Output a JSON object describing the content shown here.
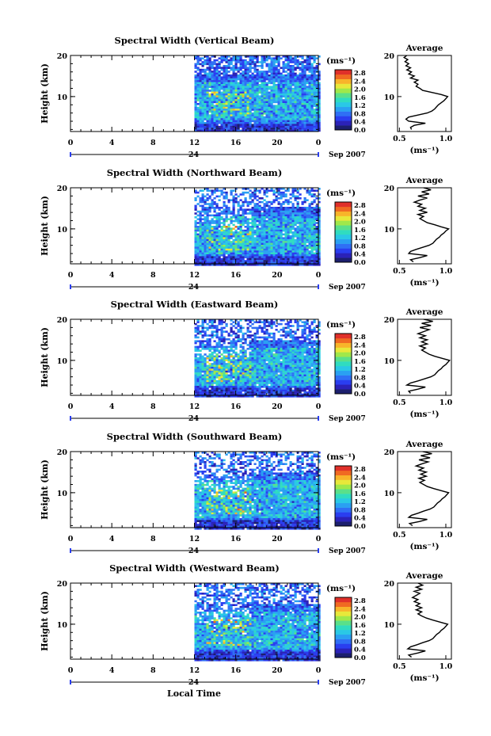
{
  "chart_data": [
    {
      "type": "heatmap",
      "title": "Spectral Width (Vertical Beam)",
      "ylabel": "Height (km)",
      "y_ticks": [
        "20",
        "10"
      ],
      "x_ticks": [
        "0",
        "4",
        "8",
        "12",
        "16",
        "20",
        "0"
      ],
      "date_label": "24",
      "month_label": "Sep 2007",
      "xlim": [
        0,
        24
      ],
      "ylim": [
        1.5,
        20
      ],
      "data_start_hour": 12,
      "colorbar": {
        "unit": "(ms⁻¹)",
        "ticks": [
          "2.8",
          "2.4",
          "2.0",
          "1.6",
          "1.2",
          "0.8",
          "0.4",
          "0.0"
        ],
        "range": [
          0,
          2.8
        ]
      },
      "average_profile": {
        "title": "Average",
        "xlabel": "(ms⁻¹)",
        "x_ticks": [
          "0.5",
          "1.0"
        ],
        "xlim": [
          0.5,
          1.0
        ],
        "y_ticks": [
          "20",
          "10"
        ],
        "points": [
          [
            0.63,
            2
          ],
          [
            0.62,
            2.5
          ],
          [
            0.66,
            3
          ],
          [
            0.78,
            3.5
          ],
          [
            0.6,
            4
          ],
          [
            0.57,
            4.5
          ],
          [
            0.6,
            5
          ],
          [
            0.7,
            5.5
          ],
          [
            0.8,
            6
          ],
          [
            0.85,
            6.5
          ],
          [
            0.88,
            7
          ],
          [
            0.9,
            7.5
          ],
          [
            0.92,
            8
          ],
          [
            0.95,
            8.5
          ],
          [
            0.98,
            9
          ],
          [
            1.0,
            9.5
          ],
          [
            1.02,
            10
          ],
          [
            0.95,
            10.5
          ],
          [
            0.85,
            11
          ],
          [
            0.75,
            11.5
          ],
          [
            0.72,
            12
          ],
          [
            0.68,
            12.5
          ],
          [
            0.7,
            13
          ],
          [
            0.66,
            13.5
          ],
          [
            0.7,
            14
          ],
          [
            0.62,
            14.5
          ],
          [
            0.66,
            15
          ],
          [
            0.6,
            15.5
          ],
          [
            0.63,
            16
          ],
          [
            0.58,
            16.5
          ],
          [
            0.62,
            17
          ],
          [
            0.57,
            17.5
          ],
          [
            0.6,
            18
          ],
          [
            0.56,
            18.5
          ],
          [
            0.59,
            19
          ],
          [
            0.55,
            19.5
          ],
          [
            0.58,
            20
          ]
        ]
      }
    },
    {
      "type": "heatmap",
      "title": "Spectral Width (Northward Beam)",
      "ylabel": "Height (km)",
      "y_ticks": [
        "20",
        "10"
      ],
      "x_ticks": [
        "0",
        "4",
        "8",
        "12",
        "16",
        "20",
        "0"
      ],
      "date_label": "24",
      "month_label": "Sep 2007",
      "xlim": [
        0,
        24
      ],
      "ylim": [
        1.5,
        20
      ],
      "data_start_hour": 12,
      "colorbar": {
        "unit": "(ms⁻¹)",
        "ticks": [
          "2.8",
          "2.4",
          "2.0",
          "1.6",
          "1.2",
          "0.8",
          "0.4",
          "0.0"
        ],
        "range": [
          0,
          2.8
        ]
      },
      "average_profile": {
        "title": "Average",
        "xlabel": "(ms⁻¹)",
        "x_ticks": [
          "0.5",
          "1.0"
        ],
        "xlim": [
          0.5,
          1.0
        ],
        "y_ticks": [
          "20",
          "10"
        ],
        "points": [
          [
            0.65,
            2
          ],
          [
            0.62,
            2.5
          ],
          [
            0.72,
            3
          ],
          [
            0.8,
            3.5
          ],
          [
            0.6,
            4
          ],
          [
            0.62,
            4.5
          ],
          [
            0.68,
            5
          ],
          [
            0.75,
            5.5
          ],
          [
            0.82,
            6
          ],
          [
            0.86,
            6.5
          ],
          [
            0.88,
            7
          ],
          [
            0.9,
            7.5
          ],
          [
            0.93,
            8
          ],
          [
            0.95,
            8.5
          ],
          [
            0.98,
            9
          ],
          [
            1.0,
            9.5
          ],
          [
            1.03,
            10
          ],
          [
            0.95,
            10.5
          ],
          [
            0.88,
            11
          ],
          [
            0.8,
            11.5
          ],
          [
            0.76,
            12
          ],
          [
            0.72,
            12.5
          ],
          [
            0.76,
            13
          ],
          [
            0.7,
            13.5
          ],
          [
            0.8,
            14
          ],
          [
            0.72,
            14.5
          ],
          [
            0.78,
            15
          ],
          [
            0.7,
            15.5
          ],
          [
            0.74,
            16
          ],
          [
            0.66,
            16.5
          ],
          [
            0.72,
            17
          ],
          [
            0.8,
            17.5
          ],
          [
            0.7,
            18
          ],
          [
            0.82,
            18.5
          ],
          [
            0.74,
            19
          ],
          [
            0.84,
            19.5
          ],
          [
            0.76,
            20
          ]
        ]
      }
    },
    {
      "type": "heatmap",
      "title": "Spectral Width (Eastward Beam)",
      "ylabel": "Height (km)",
      "y_ticks": [
        "20",
        "10"
      ],
      "x_ticks": [
        "0",
        "4",
        "8",
        "12",
        "16",
        "20",
        "0"
      ],
      "date_label": "24",
      "month_label": "Sep 2007",
      "xlim": [
        0,
        24
      ],
      "ylim": [
        1.5,
        20
      ],
      "data_start_hour": 12,
      "colorbar": {
        "unit": "(ms⁻¹)",
        "ticks": [
          "2.8",
          "2.4",
          "2.0",
          "1.6",
          "1.2",
          "0.8",
          "0.4",
          "0.0"
        ],
        "range": [
          0,
          2.8
        ]
      },
      "average_profile": {
        "title": "Average",
        "xlabel": "(ms⁻¹)",
        "x_ticks": [
          "0.5",
          "1.0"
        ],
        "xlim": [
          0.5,
          1.0
        ],
        "y_ticks": [
          "20",
          "10"
        ],
        "points": [
          [
            0.62,
            2
          ],
          [
            0.6,
            2.5
          ],
          [
            0.7,
            3
          ],
          [
            0.78,
            3.5
          ],
          [
            0.58,
            4
          ],
          [
            0.62,
            4.5
          ],
          [
            0.7,
            5
          ],
          [
            0.77,
            5.5
          ],
          [
            0.84,
            6
          ],
          [
            0.88,
            6.5
          ],
          [
            0.9,
            7
          ],
          [
            0.92,
            7.5
          ],
          [
            0.95,
            8
          ],
          [
            0.97,
            8.5
          ],
          [
            1.0,
            9
          ],
          [
            1.02,
            9.5
          ],
          [
            1.04,
            10
          ],
          [
            0.96,
            10.5
          ],
          [
            0.88,
            11
          ],
          [
            0.82,
            11.5
          ],
          [
            0.78,
            12
          ],
          [
            0.74,
            12.5
          ],
          [
            0.78,
            13
          ],
          [
            0.72,
            13.5
          ],
          [
            0.8,
            14
          ],
          [
            0.74,
            14.5
          ],
          [
            0.8,
            15
          ],
          [
            0.72,
            15.5
          ],
          [
            0.78,
            16
          ],
          [
            0.7,
            16.5
          ],
          [
            0.76,
            17
          ],
          [
            0.82,
            17.5
          ],
          [
            0.72,
            18
          ],
          [
            0.84,
            18.5
          ],
          [
            0.74,
            19
          ],
          [
            0.86,
            19.5
          ],
          [
            0.76,
            20
          ]
        ]
      }
    },
    {
      "type": "heatmap",
      "title": "Spectral Width (Southward Beam)",
      "ylabel": "Height (km)",
      "y_ticks": [
        "20",
        "10"
      ],
      "x_ticks": [
        "0",
        "4",
        "8",
        "12",
        "16",
        "20",
        "0"
      ],
      "date_label": "24",
      "month_label": "Sep 2007",
      "xlim": [
        0,
        24
      ],
      "ylim": [
        1.5,
        20
      ],
      "data_start_hour": 12,
      "colorbar": {
        "unit": "(ms⁻¹)",
        "ticks": [
          "2.8",
          "2.4",
          "2.0",
          "1.6",
          "1.2",
          "0.8",
          "0.4",
          "0.0"
        ],
        "range": [
          0,
          2.8
        ]
      },
      "average_profile": {
        "title": "Average",
        "xlabel": "(ms⁻¹)",
        "x_ticks": [
          "0.5",
          "1.0"
        ],
        "xlim": [
          0.5,
          1.0
        ],
        "y_ticks": [
          "20",
          "10"
        ],
        "points": [
          [
            0.64,
            2
          ],
          [
            0.61,
            2.5
          ],
          [
            0.72,
            3
          ],
          [
            0.8,
            3.5
          ],
          [
            0.6,
            4
          ],
          [
            0.63,
            4.5
          ],
          [
            0.7,
            5
          ],
          [
            0.76,
            5.5
          ],
          [
            0.83,
            6
          ],
          [
            0.87,
            6.5
          ],
          [
            0.89,
            7
          ],
          [
            0.91,
            7.5
          ],
          [
            0.94,
            8
          ],
          [
            0.96,
            8.5
          ],
          [
            0.99,
            9
          ],
          [
            1.01,
            9.5
          ],
          [
            1.03,
            10
          ],
          [
            0.95,
            10.5
          ],
          [
            0.87,
            11
          ],
          [
            0.8,
            11.5
          ],
          [
            0.76,
            12
          ],
          [
            0.72,
            12.5
          ],
          [
            0.77,
            13
          ],
          [
            0.71,
            13.5
          ],
          [
            0.79,
            14
          ],
          [
            0.73,
            14.5
          ],
          [
            0.79,
            15
          ],
          [
            0.71,
            15.5
          ],
          [
            0.76,
            16
          ],
          [
            0.68,
            16.5
          ],
          [
            0.74,
            17
          ],
          [
            0.81,
            17.5
          ],
          [
            0.71,
            18
          ],
          [
            0.83,
            18.5
          ],
          [
            0.73,
            19
          ],
          [
            0.85,
            19.5
          ],
          [
            0.75,
            20
          ]
        ]
      }
    },
    {
      "type": "heatmap",
      "title": "Spectral Width (Westward Beam)",
      "ylabel": "Height (km)",
      "y_ticks": [
        "20",
        "10"
      ],
      "x_ticks": [
        "0",
        "4",
        "8",
        "12",
        "16",
        "20",
        "0"
      ],
      "date_label": "24",
      "month_label": "Sep 2007",
      "xlim": [
        0,
        24
      ],
      "ylim": [
        1.5,
        20
      ],
      "data_start_hour": 12,
      "colorbar": {
        "unit": "(ms⁻¹)",
        "ticks": [
          "2.8",
          "2.4",
          "2.0",
          "1.6",
          "1.2",
          "0.8",
          "0.4",
          "0.0"
        ],
        "range": [
          0,
          2.8
        ]
      },
      "average_profile": {
        "title": "Average",
        "xlabel": "(ms⁻¹)",
        "x_ticks": [
          "0.5",
          "1.0"
        ],
        "xlim": [
          0.5,
          1.0
        ],
        "y_ticks": [
          "20",
          "10"
        ],
        "points": [
          [
            0.63,
            2
          ],
          [
            0.6,
            2.5
          ],
          [
            0.7,
            3
          ],
          [
            0.78,
            3.5
          ],
          [
            0.59,
            4
          ],
          [
            0.62,
            4.5
          ],
          [
            0.69,
            5
          ],
          [
            0.75,
            5.5
          ],
          [
            0.82,
            6
          ],
          [
            0.86,
            6.5
          ],
          [
            0.88,
            7
          ],
          [
            0.9,
            7.5
          ],
          [
            0.93,
            8
          ],
          [
            0.95,
            8.5
          ],
          [
            0.98,
            9
          ],
          [
            1.0,
            9.5
          ],
          [
            1.02,
            10
          ],
          [
            0.94,
            10.5
          ],
          [
            0.86,
            11
          ],
          [
            0.79,
            11.5
          ],
          [
            0.74,
            12
          ],
          [
            0.7,
            12.5
          ],
          [
            0.74,
            13
          ],
          [
            0.68,
            13.5
          ],
          [
            0.74,
            14
          ],
          [
            0.68,
            14.5
          ],
          [
            0.72,
            15
          ],
          [
            0.66,
            15.5
          ],
          [
            0.7,
            16
          ],
          [
            0.64,
            16.5
          ],
          [
            0.68,
            17
          ],
          [
            0.72,
            17.5
          ],
          [
            0.66,
            18
          ],
          [
            0.74,
            18.5
          ],
          [
            0.68,
            19
          ],
          [
            0.75,
            19.5
          ],
          [
            0.7,
            20
          ]
        ]
      }
    }
  ],
  "figure": {
    "xlabel": "Local Time"
  }
}
